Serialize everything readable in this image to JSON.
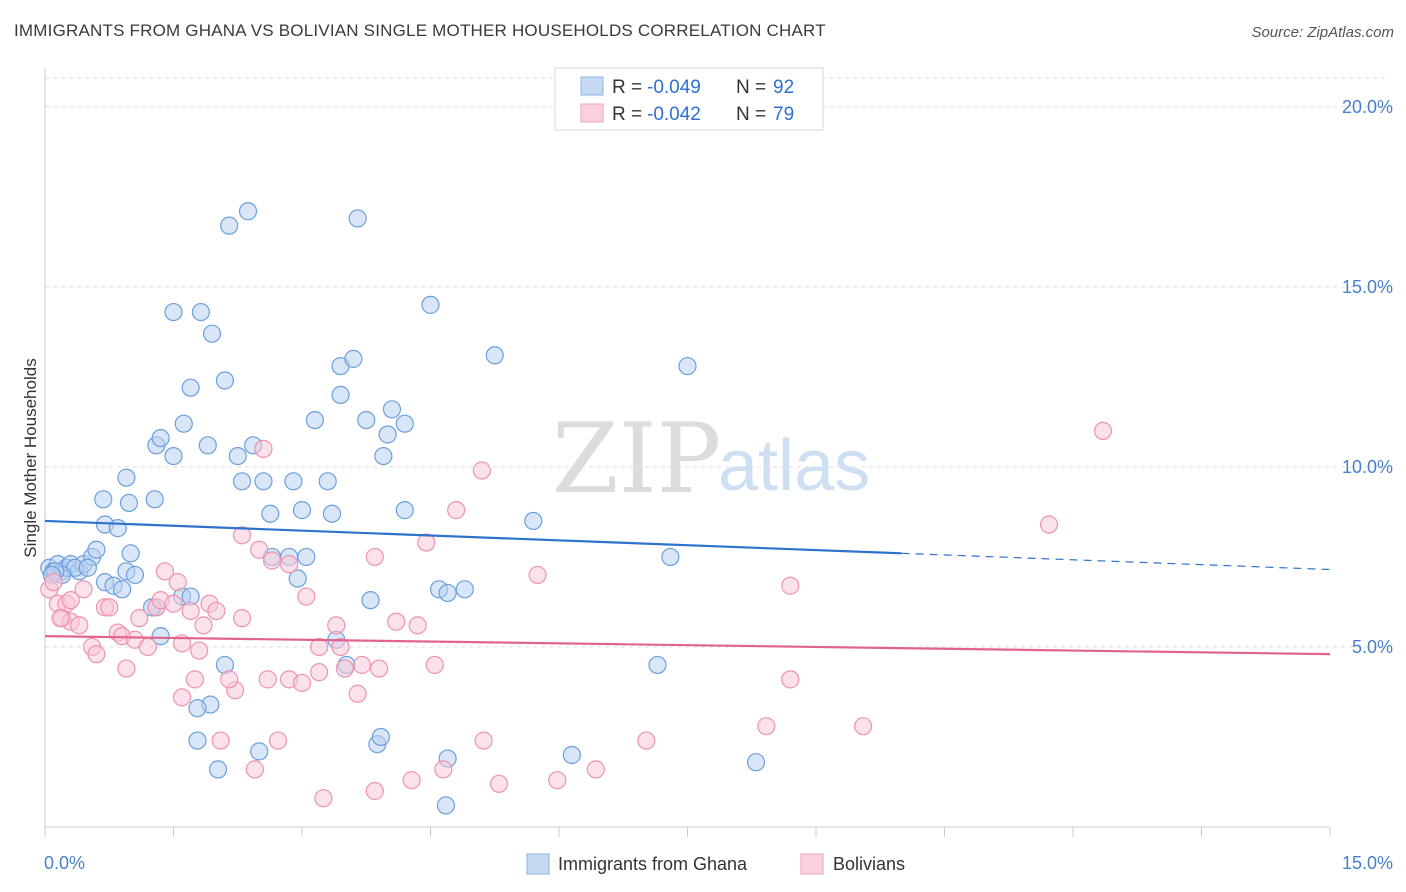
{
  "header": {
    "title": "IMMIGRANTS FROM GHANA VS BOLIVIAN SINGLE MOTHER HOUSEHOLDS CORRELATION CHART",
    "source": "Source: ZipAtlas.com"
  },
  "watermark": {
    "zip": "ZIP",
    "atlas": "atlas"
  },
  "legend": {
    "rows": [
      {
        "r_label": "R = ",
        "r_value": "-0.049",
        "n_label": "N = ",
        "n_value": "92",
        "color": "#8ab4e8",
        "fill": "#c5d9f3"
      },
      {
        "r_label": "R = ",
        "r_value": "-0.042",
        "n_label": "N = ",
        "n_value": "79",
        "color": "#f0a2bb",
        "fill": "#f9d0dc"
      }
    ]
  },
  "chart_data": {
    "type": "scatter",
    "title": "IMMIGRANTS FROM GHANA VS BOLIVIAN SINGLE MOTHER HOUSEHOLDS CORRELATION CHART",
    "xlabel": "",
    "ylabel": "Single Mother Households",
    "xlim": [
      0,
      15
    ],
    "ylim": [
      0,
      20.8
    ],
    "x_tick_labels": [
      "0.0%",
      "15.0%"
    ],
    "y_ticks": [
      5,
      10,
      15,
      20
    ],
    "y_tick_labels": [
      "5.0%",
      "10.0%",
      "15.0%",
      "20.0%"
    ],
    "grid": true,
    "legend_position": "top-center",
    "series": [
      {
        "name": "Immigrants from Ghana",
        "color": "#6b9fde",
        "fill": "#b9d2f0",
        "line_color": "#2f72cc",
        "trend": {
          "x0": 0,
          "y0": 8.5,
          "x1": 10.0,
          "y1": 7.6,
          "dash_to_x": 15,
          "dash_to_y": 7.15
        },
        "points": [
          [
            0.05,
            7.2
          ],
          [
            0.1,
            7.1
          ],
          [
            0.15,
            7.3
          ],
          [
            0.2,
            7.1
          ],
          [
            0.25,
            7.2
          ],
          [
            0.3,
            7.3
          ],
          [
            0.4,
            7.1
          ],
          [
            0.45,
            7.3
          ],
          [
            0.35,
            7.2
          ],
          [
            0.55,
            7.5
          ],
          [
            0.6,
            7.7
          ],
          [
            0.7,
            6.8
          ],
          [
            0.8,
            6.7
          ],
          [
            0.95,
            7.1
          ],
          [
            1.0,
            7.6
          ],
          [
            0.7,
            8.4
          ],
          [
            0.85,
            8.3
          ],
          [
            0.68,
            9.1
          ],
          [
            0.98,
            9.0
          ],
          [
            0.95,
            9.7
          ],
          [
            1.28,
            9.1
          ],
          [
            1.5,
            10.3
          ],
          [
            1.3,
            10.6
          ],
          [
            1.35,
            10.8
          ],
          [
            1.62,
            11.2
          ],
          [
            1.9,
            10.6
          ],
          [
            2.25,
            10.3
          ],
          [
            2.1,
            12.4
          ],
          [
            1.7,
            12.2
          ],
          [
            2.3,
            9.6
          ],
          [
            2.55,
            9.6
          ],
          [
            2.63,
            8.7
          ],
          [
            2.9,
            9.6
          ],
          [
            3.0,
            8.8
          ],
          [
            3.35,
            8.7
          ],
          [
            3.3,
            9.6
          ],
          [
            2.43,
            10.6
          ],
          [
            3.15,
            11.3
          ],
          [
            3.45,
            12.0
          ],
          [
            3.75,
            11.3
          ],
          [
            3.45,
            12.8
          ],
          [
            3.6,
            13.0
          ],
          [
            4.05,
            11.6
          ],
          [
            4.0,
            10.9
          ],
          [
            3.95,
            10.3
          ],
          [
            4.2,
            11.2
          ],
          [
            5.25,
            13.1
          ],
          [
            4.5,
            14.5
          ],
          [
            3.65,
            16.9
          ],
          [
            2.37,
            17.1
          ],
          [
            2.15,
            16.7
          ],
          [
            1.5,
            14.3
          ],
          [
            1.82,
            14.3
          ],
          [
            1.95,
            13.7
          ],
          [
            7.5,
            12.8
          ],
          [
            7.3,
            7.5
          ],
          [
            5.7,
            8.5
          ],
          [
            4.2,
            8.8
          ],
          [
            4.6,
            6.6
          ],
          [
            4.7,
            6.5
          ],
          [
            4.9,
            6.6
          ],
          [
            3.8,
            6.3
          ],
          [
            2.95,
            6.9
          ],
          [
            2.65,
            7.5
          ],
          [
            2.85,
            7.5
          ],
          [
            3.05,
            7.5
          ],
          [
            2.1,
            4.5
          ],
          [
            1.93,
            3.4
          ],
          [
            1.78,
            3.3
          ],
          [
            1.78,
            2.4
          ],
          [
            2.02,
            1.6
          ],
          [
            2.5,
            2.1
          ],
          [
            3.88,
            2.3
          ],
          [
            3.92,
            2.5
          ],
          [
            4.7,
            1.9
          ],
          [
            4.68,
            0.6
          ],
          [
            6.15,
            2.0
          ],
          [
            8.3,
            1.8
          ],
          [
            7.15,
            4.5
          ],
          [
            3.52,
            4.5
          ],
          [
            3.4,
            5.2
          ],
          [
            1.35,
            5.3
          ],
          [
            1.3,
            6.1
          ],
          [
            1.25,
            6.1
          ],
          [
            1.6,
            6.4
          ],
          [
            1.7,
            6.4
          ],
          [
            1.05,
            7.0
          ],
          [
            0.9,
            6.6
          ],
          [
            0.5,
            7.2
          ],
          [
            0.2,
            7.0
          ],
          [
            0.12,
            7.1
          ],
          [
            0.08,
            7.0
          ]
        ]
      },
      {
        "name": "Bolivians",
        "color": "#ee93b0",
        "fill": "#f7c8d7",
        "line_color": "#e0638f",
        "trend": {
          "x0": 0,
          "y0": 5.3,
          "x1": 15,
          "y1": 4.8
        },
        "points": [
          [
            0.05,
            6.6
          ],
          [
            0.1,
            6.8
          ],
          [
            0.15,
            6.2
          ],
          [
            0.2,
            5.8
          ],
          [
            0.25,
            6.2
          ],
          [
            0.3,
            5.7
          ],
          [
            0.4,
            5.6
          ],
          [
            0.45,
            6.6
          ],
          [
            0.55,
            5.0
          ],
          [
            0.6,
            4.8
          ],
          [
            0.7,
            6.1
          ],
          [
            0.75,
            6.1
          ],
          [
            0.85,
            5.4
          ],
          [
            0.9,
            5.3
          ],
          [
            0.95,
            4.4
          ],
          [
            1.05,
            5.2
          ],
          [
            1.1,
            5.8
          ],
          [
            1.2,
            5.0
          ],
          [
            1.3,
            6.1
          ],
          [
            1.35,
            6.3
          ],
          [
            1.4,
            7.1
          ],
          [
            1.5,
            6.2
          ],
          [
            1.55,
            6.8
          ],
          [
            1.6,
            5.1
          ],
          [
            1.7,
            6.0
          ],
          [
            1.8,
            4.9
          ],
          [
            1.85,
            5.6
          ],
          [
            1.92,
            6.2
          ],
          [
            2.0,
            6.0
          ],
          [
            2.3,
            5.8
          ],
          [
            2.3,
            8.1
          ],
          [
            2.5,
            7.7
          ],
          [
            2.65,
            7.4
          ],
          [
            2.85,
            7.3
          ],
          [
            3.05,
            6.4
          ],
          [
            3.2,
            5.0
          ],
          [
            3.2,
            4.3
          ],
          [
            3.4,
            5.6
          ],
          [
            3.45,
            5.0
          ],
          [
            3.5,
            4.4
          ],
          [
            3.7,
            4.5
          ],
          [
            3.65,
            3.7
          ],
          [
            3.85,
            7.5
          ],
          [
            3.9,
            4.4
          ],
          [
            4.1,
            5.7
          ],
          [
            4.35,
            5.6
          ],
          [
            4.45,
            7.9
          ],
          [
            4.55,
            4.5
          ],
          [
            4.8,
            8.8
          ],
          [
            5.1,
            9.9
          ],
          [
            5.75,
            7.0
          ],
          [
            8.7,
            6.7
          ],
          [
            11.72,
            8.4
          ],
          [
            12.35,
            11.0
          ],
          [
            8.7,
            4.1
          ],
          [
            8.42,
            2.8
          ],
          [
            9.55,
            2.8
          ],
          [
            7.02,
            2.4
          ],
          [
            5.12,
            2.4
          ],
          [
            2.72,
            2.4
          ],
          [
            2.05,
            2.4
          ],
          [
            2.45,
            1.6
          ],
          [
            3.25,
            0.8
          ],
          [
            3.85,
            1.0
          ],
          [
            4.28,
            1.3
          ],
          [
            4.65,
            1.6
          ],
          [
            5.3,
            1.2
          ],
          [
            5.98,
            1.3
          ],
          [
            6.43,
            1.6
          ],
          [
            2.22,
            3.8
          ],
          [
            2.15,
            4.1
          ],
          [
            2.6,
            4.1
          ],
          [
            2.85,
            4.1
          ],
          [
            3.0,
            4.0
          ],
          [
            2.55,
            10.5
          ],
          [
            1.6,
            3.6
          ],
          [
            1.75,
            4.1
          ],
          [
            0.3,
            6.3
          ],
          [
            0.18,
            5.8
          ]
        ]
      }
    ]
  },
  "bottom_legend": {
    "items": [
      {
        "label": "Immigrants from Ghana",
        "color": "#8ab4e8",
        "fill": "#c5d9f3"
      },
      {
        "label": "Bolivians",
        "color": "#f0a2bb",
        "fill": "#f9d0dc"
      }
    ]
  }
}
